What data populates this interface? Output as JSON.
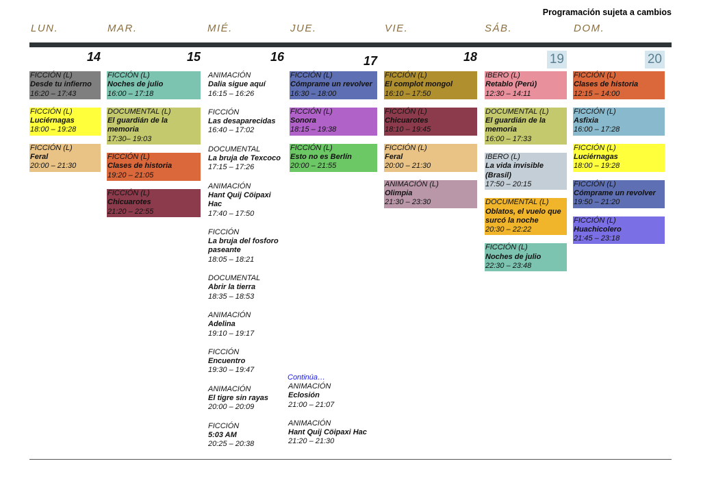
{
  "note": "Programación sujeta a cambios",
  "days": [
    {
      "name": "LUN.",
      "num": "14",
      "events": [
        {
          "cat": "FICCIÓN (L)",
          "title": "Desde tu infierno",
          "time": "16:20  – 17:43",
          "color": "#7f7f7f"
        },
        {
          "cat": "FICCIÓN (L)",
          "title": "Luciérnagas",
          "time": "18:00 – 19:28",
          "color": "#ffff3c"
        },
        {
          "cat": "FICCIÓN (L)",
          "title": "Feral",
          "time": "20:00 – 21:30",
          "color": "#e9c386"
        }
      ]
    },
    {
      "name": "MAR.",
      "num": "15",
      "events": [
        {
          "cat": "FICCIÓN (L)",
          "title": "Noches de julio",
          "time": "16:00 – 17:18",
          "color": "#7cc4b0"
        },
        {
          "cat": "DOCUMENTAL (L)",
          "title": "El guardián de la memoria",
          "time": "17:30– 19:03",
          "color": "#c3c96c"
        },
        {
          "cat": "FICCIÓN (L)",
          "title": "Clases de historia",
          "time": "19:20 – 21:05",
          "color": "#da683b"
        },
        {
          "cat": "FICCIÓN (L)",
          "title": "Chicuarotes",
          "time": "21:20 – 22:55",
          "color": "#8b3b4b"
        }
      ]
    },
    {
      "name": "MIÉ.",
      "num": "16",
      "events": [
        {
          "cat": "ANIMACIÓN",
          "title": "Dalia sigue aquí",
          "time": "16:15 – 16:26"
        },
        {
          "cat": "FICCIÓN",
          "title": "Las desaparecidas",
          "time": "16:40 – 17:02"
        },
        {
          "cat": "DOCUMENTAL",
          "title": "La bruja de Texcoco",
          "time": "17:15 – 17:26"
        },
        {
          "cat": "ANIMACIÓN",
          "title": "Hant Quij Cöipaxi Hac",
          "time": "17:40 – 17:50"
        },
        {
          "cat": "FICCIÓN",
          "title": "La bruja del fosforo paseante",
          "time": "18:05 – 18:21"
        },
        {
          "cat": "DOCUMENTAL",
          "title": "Abrir la tierra",
          "time": "18:35 – 18:53"
        },
        {
          "cat": "ANIMACIÓN",
          "title": "Adelina",
          "time": "19:10 – 19:17"
        },
        {
          "cat": "FICCIÓN",
          "title": "Encuentro",
          "time": "19:30 – 19:47"
        },
        {
          "cat": "ANIMACIÓN",
          "title": "El tigre sin rayas",
          "time": "20:00 – 20:09"
        },
        {
          "cat": "FICCIÓN",
          "title": "5:03 AM",
          "time": "20:25 – 20:38"
        }
      ]
    },
    {
      "name": "JUE.",
      "num": "17",
      "events": [
        {
          "cat": "FICCIÓN (L)",
          "title": "Cómprame un revolver",
          "time": "16:30 – 18:00",
          "color": "#5e70b3"
        },
        {
          "cat": "FICCIÓN (L)",
          "title": "Sonora",
          "time": "18:15 – 19:38",
          "color": "#b062c9"
        },
        {
          "cat": "FICCIÓN (L)",
          "title": "Esto no es Berlín",
          "time": "20:00 – 21:55",
          "color": "#6cc865"
        }
      ]
    },
    {
      "name": "VIE.",
      "num": "18",
      "events": [
        {
          "cat": "FICCIÓN (L)",
          "title": "El complot mongol",
          "time": "16:10 – 17:50",
          "color": "#b08f2f"
        },
        {
          "cat": "FICCIÓN (L)",
          "title": "Chicuarotes",
          "time": "18:10 – 19:45",
          "color": "#8b3b4b"
        },
        {
          "cat": "FICCIÓN (L)",
          "title": "Feral",
          "time": "20:00 – 21:30",
          "color": "#e9c386"
        },
        {
          "cat": "ANIMACIÓN (L)",
          "title": "Olimpia",
          "time": "21:30 – 23:30",
          "color": "#b997a9"
        }
      ]
    },
    {
      "name": "SÁB.",
      "num": "19",
      "events": [
        {
          "cat": "IBERO (L)",
          "title": "Retablo (Perú)",
          "time": "12:30 – 14:11",
          "color": "#e8909c"
        },
        {
          "cat": "DOCUMENTAL (L)",
          "title": "El guardián de la memoria",
          "time": "16:00 – 17:33",
          "color": "#c3c96c"
        },
        {
          "cat": "IBERO (L)",
          "title": "La vida invisible (Brasil)",
          "time": "17:50 – 20:15",
          "color": "#c4ced6"
        },
        {
          "cat": "DOCUMENTAL (L)",
          "title": "Oblatos, el vuelo que surcó la noche",
          "time": "20:30 – 22:22",
          "color": "#f1b52b"
        },
        {
          "cat": "FICCIÓN (L)",
          "title": "Noches de julio",
          "time": "22:30 – 23:48",
          "color": "#7cc4b0"
        }
      ]
    },
    {
      "name": "DOM.",
      "num": "20",
      "events": [
        {
          "cat": "FICCIÓN (L)",
          "title": "Clases de historia",
          "time": "12:15 – 14:00",
          "color": "#da683b"
        },
        {
          "cat": "FICCIÓN (L)",
          "title": "Asfixia",
          "time": "16:00 – 17:28",
          "color": "#89b9cd"
        },
        {
          "cat": "FICCIÓN (L)",
          "title": "Luciérnagas",
          "time": "18:00 – 19:28",
          "color": "#ffff3c"
        },
        {
          "cat": "FICCIÓN (L)",
          "title": "Cómprame un revolver",
          "time": "19:50 – 21:20",
          "color": "#5e70b3"
        },
        {
          "cat": "FICCIÓN (L)",
          "title": "Huachicolero",
          "time": "21:45 – 23:18",
          "color": "#7b6fe6"
        }
      ]
    }
  ],
  "continued": {
    "label": "Continúa…",
    "events": [
      {
        "cat": "ANIMACIÓN",
        "title": "Eclosión",
        "time": "21:00 – 21:07"
      },
      {
        "cat": "ANIMACIÓN",
        "title": "Hant Quij Cöipaxi Hac",
        "time": "21:20 – 21:30"
      }
    ]
  }
}
